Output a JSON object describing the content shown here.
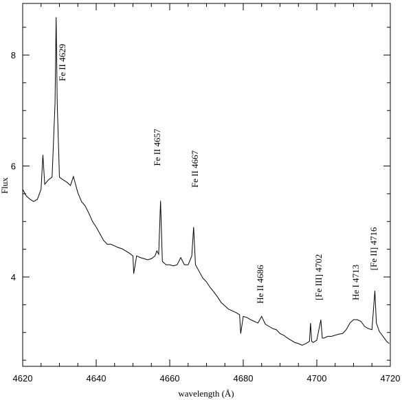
{
  "chart_data": {
    "type": "line",
    "xlabel": "wavelength (Å)",
    "ylabel": "Flux",
    "color": "#000000",
    "xlim": [
      4620,
      4720
    ],
    "ylim": [
      2.39,
      8.93
    ],
    "xticks": [
      4620,
      4640,
      4660,
      4680,
      4700,
      4720
    ],
    "yticks": [
      4,
      6,
      8
    ],
    "x_minor_ticks": [
      4625,
      4630,
      4635,
      4645,
      4650,
      4655,
      4665,
      4670,
      4675,
      4685,
      4690,
      4695,
      4705,
      4710,
      4715
    ],
    "y_minor_ticks": [
      2.5,
      3,
      3.5,
      4.5,
      5,
      5.5,
      6.5,
      7,
      7.5,
      8.5
    ],
    "x": [
      4620,
      4621,
      4622,
      4623,
      4624,
      4625,
      4625.5,
      4626,
      4627,
      4628,
      4628.8,
      4629.1,
      4629.4,
      4630,
      4631,
      4632,
      4633,
      4633.8,
      4635,
      4636,
      4637,
      4638,
      4639,
      4640,
      4641,
      4642,
      4643,
      4644,
      4645,
      4646,
      4647,
      4648,
      4649,
      4650,
      4650.2,
      4651,
      4652,
      4653,
      4654,
      4655,
      4656,
      4656.5,
      4657,
      4657.5,
      4658,
      4659,
      4660,
      4661,
      4662,
      4663,
      4664,
      4665,
      4666,
      4666.5,
      4667,
      4668,
      4669,
      4670,
      4671,
      4672,
      4673,
      4674,
      4675,
      4676,
      4677,
      4678,
      4679,
      4679.3,
      4680,
      4681,
      4682,
      4683,
      4684,
      4685,
      4686,
      4687,
      4688,
      4689,
      4690,
      4691,
      4692,
      4693,
      4694,
      4695,
      4696,
      4697,
      4698,
      4698.3,
      4698.6,
      4699,
      4700,
      4701.1,
      4701.5,
      4702,
      4703,
      4704,
      4705,
      4706,
      4707,
      4708,
      4709,
      4710,
      4711,
      4712,
      4713,
      4714,
      4715,
      4715.8,
      4716.2,
      4717,
      4718,
      4719,
      4719.7
    ],
    "values": [
      5.58,
      5.46,
      5.4,
      5.36,
      5.4,
      5.58,
      6.2,
      5.67,
      5.75,
      5.8,
      7.13,
      8.68,
      7.13,
      5.8,
      5.75,
      5.71,
      5.65,
      5.81,
      5.52,
      5.36,
      5.28,
      5.15,
      5.0,
      4.9,
      4.78,
      4.66,
      4.59,
      4.59,
      4.56,
      4.53,
      4.51,
      4.47,
      4.43,
      4.38,
      4.06,
      4.38,
      4.35,
      4.33,
      4.31,
      4.33,
      4.38,
      4.47,
      4.41,
      5.37,
      4.28,
      4.22,
      4.22,
      4.2,
      4.22,
      4.35,
      4.22,
      4.22,
      4.38,
      4.9,
      4.22,
      4.1,
      3.98,
      3.91,
      3.81,
      3.73,
      3.64,
      3.54,
      3.48,
      3.42,
      3.39,
      3.36,
      3.32,
      2.98,
      3.29,
      3.27,
      3.23,
      3.2,
      3.17,
      3.29,
      3.15,
      3.11,
      3.07,
      3.05,
      2.98,
      2.95,
      2.9,
      2.86,
      2.82,
      2.8,
      2.77,
      2.8,
      2.84,
      3.17,
      2.84,
      2.82,
      2.86,
      3.23,
      2.9,
      2.9,
      2.93,
      2.93,
      2.95,
      2.97,
      2.98,
      3.05,
      3.17,
      3.23,
      3.23,
      3.2,
      3.11,
      3.07,
      3.05,
      3.75,
      3.17,
      3.02,
      2.93,
      2.84,
      2.8
    ],
    "annotations": [
      {
        "text": "Fe II 4629",
        "x": 4631.6,
        "y": 7.53
      },
      {
        "text": "Fe II 4657",
        "x": 4657.4,
        "y": 6.0
      },
      {
        "text": "Fe II 4667",
        "x": 4667.7,
        "y": 5.61
      },
      {
        "text": "He II 4686",
        "x": 4685.4,
        "y": 3.52
      },
      {
        "text": "[Fe III] 4702",
        "x": 4701.3,
        "y": 3.58
      },
      {
        "text": "He I 4713",
        "x": 4711.4,
        "y": 3.58
      },
      {
        "text": "[Fe II] 4716",
        "x": 4716.3,
        "y": 4.12
      }
    ]
  }
}
